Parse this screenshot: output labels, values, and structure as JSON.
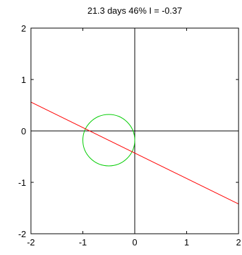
{
  "chart_data": {
    "type": "line",
    "title": "21.3 days  46% I = -0.37",
    "xlabel": "",
    "ylabel": "",
    "xlim": [
      -2,
      2
    ],
    "ylim": [
      -2,
      2
    ],
    "xticks": [
      -2,
      -1,
      0,
      1,
      2
    ],
    "yticks": [
      -2,
      -1,
      0,
      1,
      2
    ],
    "xtick_labels": [
      "-2",
      "-1",
      "0",
      "1",
      "2"
    ],
    "ytick_labels": [
      "-2",
      "-1",
      "0",
      "1",
      "2"
    ],
    "grid": false,
    "axes_lines": {
      "x": 0,
      "y": 0,
      "color": "#000000"
    },
    "circle": {
      "center": [
        -0.5,
        -0.18
      ],
      "radius": 0.5,
      "color": "#00cc00"
    },
    "series": [
      {
        "x": [
          -2,
          2
        ],
        "y": [
          0.56,
          -1.42
        ],
        "color": "#ff0000"
      }
    ]
  }
}
